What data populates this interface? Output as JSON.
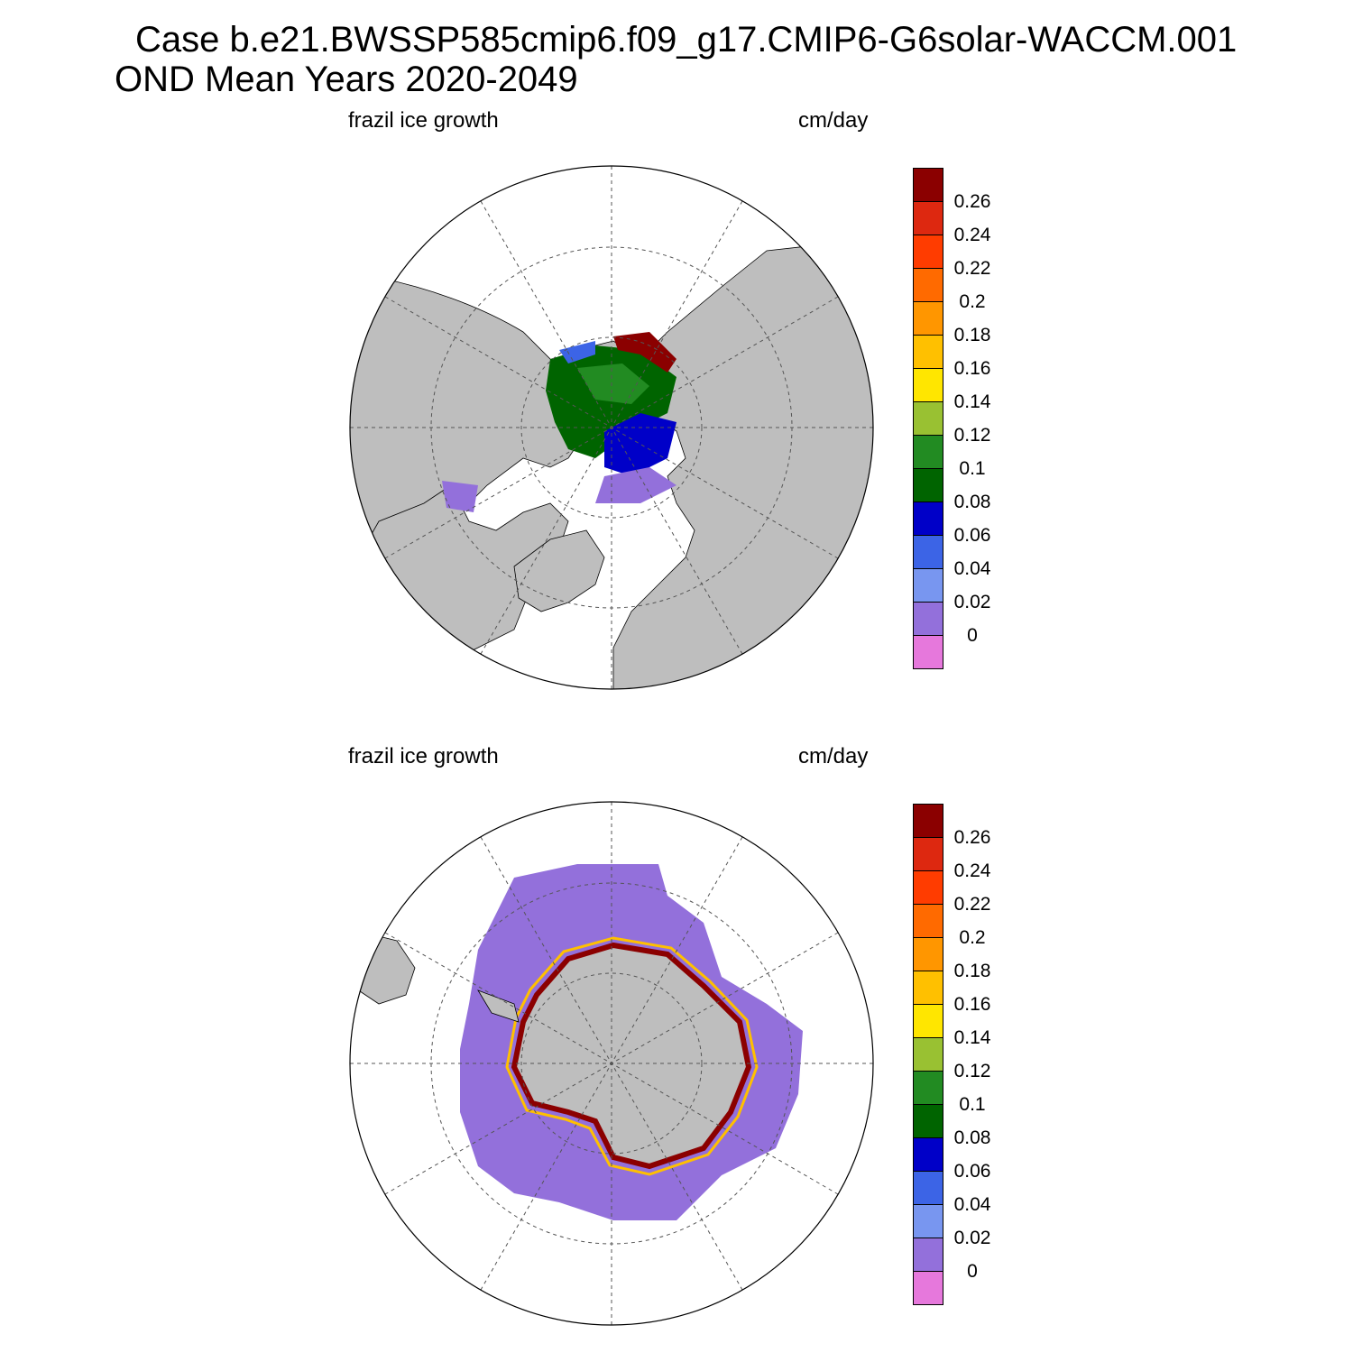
{
  "title": {
    "line1": "Case b.e21.BWSSP585cmip6.f09_g17.CMIP6-G6solar-WACCM.001",
    "line2": "OND Mean   Years 2020-2049"
  },
  "panels": [
    {
      "hemisphere": "north",
      "left_label": "frazil ice growth",
      "right_label": "cm/day"
    },
    {
      "hemisphere": "south",
      "left_label": "frazil ice growth",
      "right_label": "cm/day"
    }
  ],
  "colorbar": {
    "levels": [
      "0.26",
      "0.24",
      "0.22",
      "0.2",
      "0.18",
      "0.16",
      "0.14",
      "0.12",
      "0.1",
      "0.08",
      "0.06",
      "0.04",
      "0.02",
      "0"
    ],
    "colors": [
      "#8b0000",
      "#dd2810",
      "#ff3c00",
      "#ff6a00",
      "#ff9600",
      "#ffc000",
      "#ffe600",
      "#99c132",
      "#228b22",
      "#006400",
      "#0000c8",
      "#3c64e6",
      "#7896f0",
      "#9370db",
      "#e678dc"
    ]
  },
  "map_colors": {
    "land": "#bebebe",
    "ocean": "#ffffff",
    "zero_band": "#9370db"
  }
}
